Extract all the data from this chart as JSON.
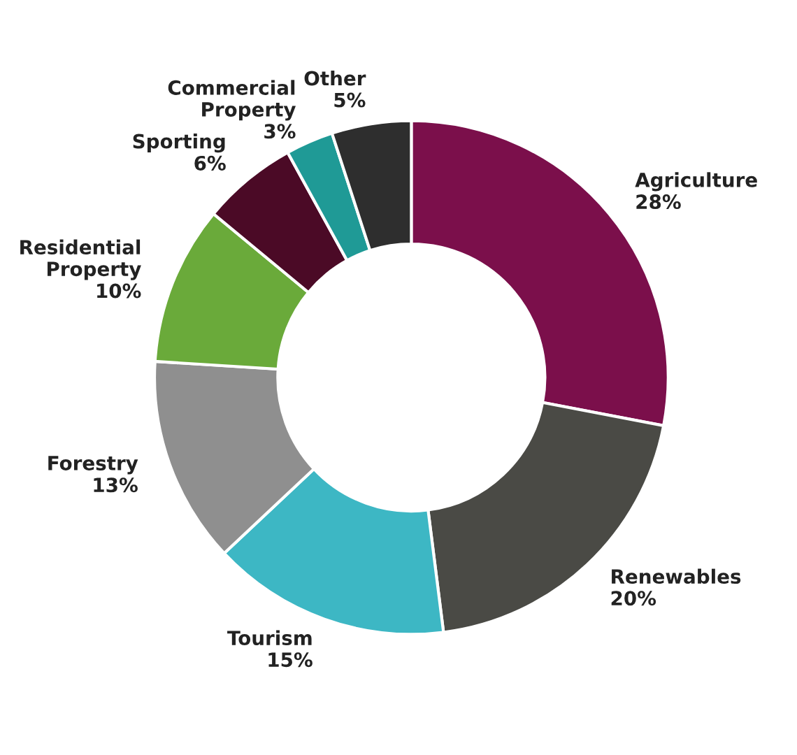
{
  "chart_data": {
    "type": "donut",
    "categories": [
      "Agriculture",
      "Renewables",
      "Tourism",
      "Forestry",
      "Residential\nProperty",
      "Sporting",
      "Commercial\nProperty",
      "Other"
    ],
    "values": [
      28,
      20,
      15,
      13,
      10,
      6,
      3,
      5
    ],
    "value_labels": [
      "28%",
      "20%",
      "15%",
      "13%",
      "10%",
      "6%",
      "3%",
      "5%"
    ],
    "colors": [
      "#7b0f4b",
      "#4a4a45",
      "#3db7c4",
      "#8f8f8f",
      "#6aaa3a",
      "#4b0a26",
      "#1f9a96",
      "#2e2e2e"
    ]
  }
}
